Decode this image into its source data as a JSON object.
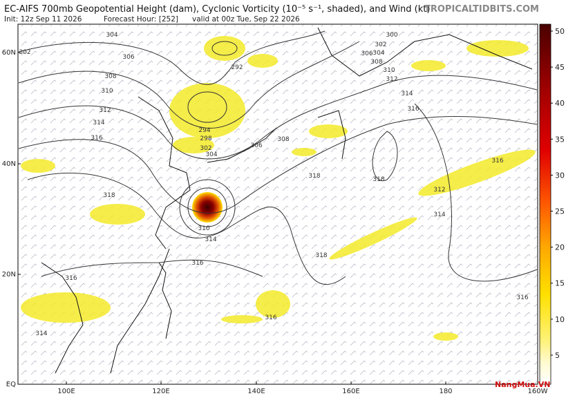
{
  "header": {
    "title": "EC-AIFS 700mb Geopotential Height (dam), Cyclonic Vorticity (10⁻⁵ s⁻¹, shaded), and Wind (kt)",
    "brand": "TROPICALTIDBITS.COM",
    "init": "Init: 12z Sep 11 2026",
    "forecast_hour": "Forecast Hour: [252]",
    "valid": "valid at 00z Tue, Sep 22 2026"
  },
  "map": {
    "lat_labels": [
      "60N",
      "40N",
      "20N",
      "EQ"
    ],
    "lon_labels": [
      "100E",
      "120E",
      "140E",
      "160E",
      "180",
      "160W"
    ],
    "contour_labels": [
      302,
      304,
      306,
      308,
      310,
      312,
      314,
      316,
      318,
      292,
      294,
      298,
      302,
      304,
      306,
      308,
      300,
      302,
      304,
      306,
      308,
      310,
      312,
      314,
      316,
      318,
      318,
      312,
      314,
      316,
      318,
      310,
      314,
      316,
      316,
      316,
      316,
      314
    ]
  },
  "colorbar": {
    "ticks": [
      50,
      45,
      40,
      35,
      30,
      25,
      20,
      15,
      10,
      5
    ]
  },
  "watermark": "NangMua.VN"
}
